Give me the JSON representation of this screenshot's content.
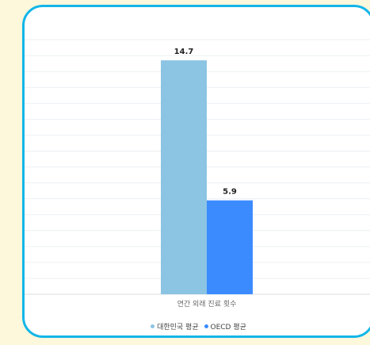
{
  "chart_data": {
    "type": "bar",
    "categories": [
      "연간 외래 진료 횟수"
    ],
    "series": [
      {
        "name": "대한민국 평균",
        "values": [
          14.7
        ],
        "color": "#8cc4e3"
      },
      {
        "name": "OECD 평균",
        "values": [
          5.9
        ],
        "color": "#3b8bff"
      }
    ],
    "data_labels": [
      "14.7",
      "5.9"
    ],
    "title": "",
    "xlabel": "",
    "ylabel": "",
    "ylim": [
      0,
      16
    ],
    "grid": true,
    "legend_position": "bottom"
  }
}
